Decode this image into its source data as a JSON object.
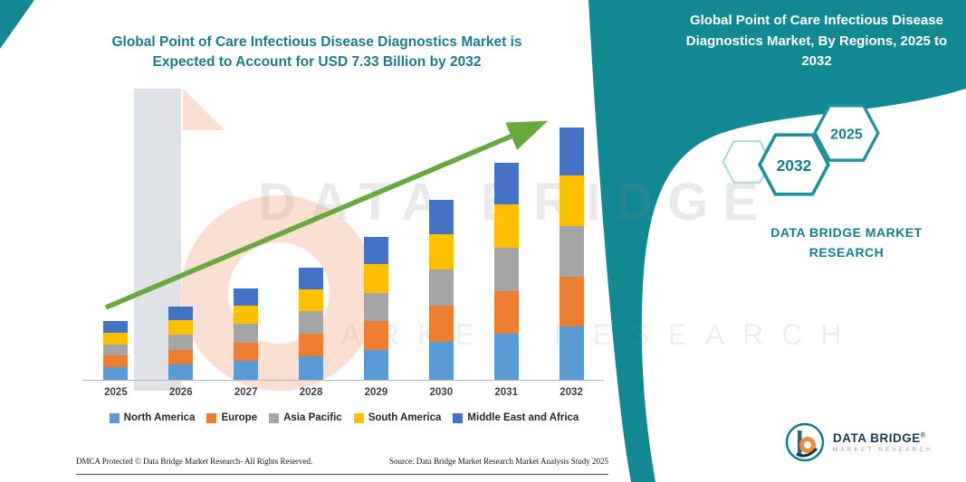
{
  "main_title": {
    "line1": "Global Point of Care Infectious Disease Diagnostics Market is",
    "line2": "Expected to Account for USD 7.33 Billion by 2032"
  },
  "chart_data": {
    "type": "bar",
    "stacked": true,
    "title": "Global Point of Care Infectious Disease Diagnostics Market is Expected to Account for USD 7.33 Billion by 2032",
    "unit": "USD Billion",
    "categories": [
      "2025",
      "2026",
      "2027",
      "2028",
      "2029",
      "2030",
      "2031",
      "2032"
    ],
    "series": [
      {
        "name": "North America",
        "color": "#5B9BD5",
        "values": [
          0.36,
          0.45,
          0.56,
          0.69,
          0.88,
          1.1,
          1.33,
          1.54
        ]
      },
      {
        "name": "Europe",
        "color": "#ED7D31",
        "values": [
          0.34,
          0.43,
          0.53,
          0.65,
          0.83,
          1.05,
          1.26,
          1.47
        ]
      },
      {
        "name": "Asia Pacific",
        "color": "#A5A5A5",
        "values": [
          0.34,
          0.43,
          0.53,
          0.65,
          0.83,
          1.05,
          1.26,
          1.47
        ]
      },
      {
        "name": "South America",
        "color": "#FFC000",
        "values": [
          0.34,
          0.43,
          0.53,
          0.65,
          0.83,
          1.05,
          1.26,
          1.47
        ]
      },
      {
        "name": "Middle East and Africa",
        "color": "#4472C4",
        "values": [
          0.32,
          0.4,
          0.51,
          0.62,
          0.8,
          0.99,
          1.2,
          1.38
        ]
      }
    ],
    "totals": [
      1.7,
      2.14,
      2.66,
      3.26,
      4.17,
      5.24,
      6.31,
      7.33
    ],
    "ylim": [
      0,
      8
    ],
    "grid": false,
    "legend_position": "bottom",
    "annotations": [
      "green upward trend arrow across bars"
    ]
  },
  "side_panel": {
    "title": "Global Point of Care Infectious Disease Diagnostics Market, By Regions, 2025 to 2032",
    "hexagons": [
      "2032",
      "2025"
    ],
    "brand_line1": "DATA BRIDGE MARKET",
    "brand_line2": "RESEARCH"
  },
  "watermark": {
    "line1": "DATA BRIDGE",
    "line2": "MARKET RESEARCH"
  },
  "footer": {
    "dmca": "DMCA Protected © Data Bridge Market Research-  All Rights Reserved.",
    "source": "Source: Data Bridge Market Research  Market Analysis Study 2025"
  },
  "logo": {
    "name": "DATA BRIDGE",
    "registered": "®",
    "subtext": "MARKET RESEARCH"
  },
  "colors": {
    "teal": "#128992",
    "title_text": "#1B7B8C",
    "arrow_green": "#67A93C"
  }
}
